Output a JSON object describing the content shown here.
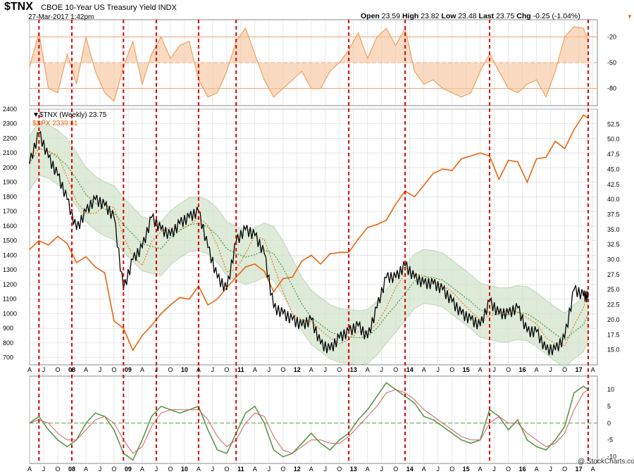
{
  "header": {
    "symbol": "$TNX",
    "name": "CBOE 10-Year US Treasury Yield",
    "exchange": "INDX",
    "date": "27-Mar-2017 1:42pm",
    "open_label": "Open",
    "open": "23.59",
    "high_label": "High",
    "high": "23.82",
    "low_label": "Low",
    "low": "23.48",
    "last_label": "Last",
    "last": "23.75",
    "chg_label": "Chg",
    "chg": "-0.25 (-1.04%)",
    "brand": "@ StockCharts.com"
  },
  "legend": {
    "tnx": "▼$TNX (Weekly) 23.75",
    "spx": "$SPX 2339.61"
  },
  "colors": {
    "tnx": "#000000",
    "spx": "#e8650f",
    "band_fill": "#cfe3c8",
    "band_edge": "#9dbb92",
    "ma_green": "#2e8b2e",
    "ma_orange": "#e8650f",
    "osc_fill": "#f7c39a",
    "osc_line": "#f0a060",
    "macd": "#5a9a4a",
    "signal": "#d06060",
    "vline": "#dd0000",
    "grid": "#d9d9d9"
  },
  "chart_data": [
    {
      "type": "line",
      "panel": "top-oscillator",
      "yticks": [
        -20,
        -50,
        -80
      ],
      "ylim": [
        -100,
        0
      ],
      "reference_lines": [
        -20,
        -50,
        -80
      ],
      "x": [
        "2007-04",
        "2007-06",
        "2007-08",
        "2007-10",
        "2007-12",
        "2008-02",
        "2008-04",
        "2008-06",
        "2008-08",
        "2008-10",
        "2008-12",
        "2009-02",
        "2009-04",
        "2009-06",
        "2009-08",
        "2009-10",
        "2009-12",
        "2010-02",
        "2010-04",
        "2010-06",
        "2010-08",
        "2010-10",
        "2010-12",
        "2011-02",
        "2011-04",
        "2011-06",
        "2011-08",
        "2011-10",
        "2011-12",
        "2012-02",
        "2012-04",
        "2012-06",
        "2012-08",
        "2012-10",
        "2012-12",
        "2013-02",
        "2013-04",
        "2013-06",
        "2013-08",
        "2013-10",
        "2013-12",
        "2014-02",
        "2014-04",
        "2014-06",
        "2014-08",
        "2014-10",
        "2014-12",
        "2015-02",
        "2015-04",
        "2015-06",
        "2015-08",
        "2015-10",
        "2015-12",
        "2016-02",
        "2016-04",
        "2016-06",
        "2016-08",
        "2016-10",
        "2016-12",
        "2017-02",
        "2017-03"
      ],
      "values": [
        -55,
        -15,
        -80,
        -85,
        -40,
        -75,
        -20,
        -60,
        -85,
        -95,
        -55,
        -25,
        -75,
        -40,
        -20,
        -45,
        -30,
        -25,
        -70,
        -90,
        -85,
        -60,
        -25,
        -10,
        -40,
        -70,
        -90,
        -80,
        -70,
        -60,
        -80,
        -80,
        -60,
        -50,
        -35,
        -15,
        -45,
        -20,
        -10,
        -30,
        -10,
        -60,
        -75,
        -70,
        -80,
        -85,
        -90,
        -85,
        -60,
        -40,
        -60,
        -80,
        -85,
        -75,
        -70,
        -90,
        -60,
        -20,
        -8,
        -10,
        -25
      ]
    },
    {
      "type": "line",
      "panel": "price",
      "series": [
        {
          "name": "$TNX (Weekly)",
          "axis": "right",
          "x": [
            "2007-04",
            "2007-06",
            "2007-08",
            "2007-10",
            "2007-12",
            "2008-02",
            "2008-04",
            "2008-06",
            "2008-08",
            "2008-10",
            "2008-12",
            "2009-02",
            "2009-04",
            "2009-06",
            "2009-08",
            "2009-10",
            "2009-12",
            "2010-02",
            "2010-04",
            "2010-06",
            "2010-08",
            "2010-10",
            "2010-12",
            "2011-02",
            "2011-04",
            "2011-06",
            "2011-08",
            "2011-10",
            "2011-12",
            "2012-02",
            "2012-04",
            "2012-06",
            "2012-08",
            "2012-10",
            "2012-12",
            "2013-02",
            "2013-04",
            "2013-06",
            "2013-08",
            "2013-10",
            "2013-12",
            "2014-02",
            "2014-04",
            "2014-06",
            "2014-08",
            "2014-10",
            "2014-12",
            "2015-02",
            "2015-04",
            "2015-06",
            "2015-08",
            "2015-10",
            "2015-12",
            "2016-02",
            "2016-04",
            "2016-06",
            "2016-08",
            "2016-10",
            "2016-12",
            "2017-02",
            "2017-03"
          ],
          "values": [
            46,
            51,
            47,
            44,
            40,
            35,
            38,
            40,
            39,
            37,
            25,
            30,
            32,
            37,
            35,
            34,
            36,
            37,
            38,
            32,
            27,
            25,
            33,
            35,
            34,
            31,
            22,
            21,
            20,
            19,
            20,
            16,
            15,
            17,
            18,
            19,
            17,
            22,
            27,
            27,
            29,
            27,
            26,
            26,
            25,
            23,
            21,
            20,
            19,
            23,
            21,
            21,
            22,
            18,
            18,
            15,
            15,
            17,
            25,
            24,
            23.75
          ]
        },
        {
          "name": "$SPX",
          "axis": "left",
          "x": [
            "2007-04",
            "2007-06",
            "2007-08",
            "2007-10",
            "2007-12",
            "2008-02",
            "2008-04",
            "2008-06",
            "2008-08",
            "2008-10",
            "2008-12",
            "2009-02",
            "2009-04",
            "2009-06",
            "2009-08",
            "2009-10",
            "2009-12",
            "2010-02",
            "2010-04",
            "2010-06",
            "2010-08",
            "2010-10",
            "2010-12",
            "2011-02",
            "2011-04",
            "2011-06",
            "2011-08",
            "2011-10",
            "2011-12",
            "2012-02",
            "2012-04",
            "2012-06",
            "2012-08",
            "2012-10",
            "2012-12",
            "2013-02",
            "2013-04",
            "2013-06",
            "2013-08",
            "2013-10",
            "2013-12",
            "2014-02",
            "2014-04",
            "2014-06",
            "2014-08",
            "2014-10",
            "2014-12",
            "2015-02",
            "2015-04",
            "2015-06",
            "2015-08",
            "2015-10",
            "2015-12",
            "2016-02",
            "2016-04",
            "2016-06",
            "2016-08",
            "2016-10",
            "2016-12",
            "2017-02",
            "2017-03"
          ],
          "values": [
            1440,
            1500,
            1470,
            1530,
            1480,
            1350,
            1390,
            1320,
            1280,
            950,
            900,
            750,
            850,
            920,
            1000,
            1060,
            1110,
            1100,
            1190,
            1060,
            1100,
            1180,
            1250,
            1320,
            1340,
            1290,
            1150,
            1240,
            1250,
            1360,
            1400,
            1340,
            1410,
            1420,
            1420,
            1510,
            1590,
            1610,
            1640,
            1750,
            1840,
            1800,
            1880,
            1960,
            1990,
            1980,
            2060,
            2080,
            2100,
            2080,
            1920,
            2050,
            2040,
            1900,
            2060,
            2070,
            2180,
            2130,
            2260,
            2360,
            2339.61
          ]
        }
      ],
      "left_yticks": [
        2400,
        2300,
        2200,
        2100,
        2000,
        1900,
        1800,
        1700,
        1600,
        1500,
        1400,
        1300,
        1200,
        1100,
        1000,
        900,
        800,
        700
      ],
      "right_yticks": [
        52.5,
        50.0,
        47.5,
        45.0,
        42.5,
        40.0,
        37.5,
        35.0,
        32.5,
        30.0,
        27.5,
        25.0,
        22.5,
        20.0,
        17.5,
        15.0
      ],
      "left_ylim": [
        650,
        2400
      ],
      "right_ylim": [
        12.5,
        55
      ]
    },
    {
      "type": "line",
      "panel": "bottom-macd",
      "yticks": [
        10,
        5,
        0,
        -5,
        -10
      ],
      "ylim": [
        -12,
        14
      ],
      "series": [
        {
          "name": "MACD",
          "x": [
            "2007-04",
            "2007-06",
            "2007-08",
            "2007-10",
            "2007-12",
            "2008-02",
            "2008-04",
            "2008-06",
            "2008-08",
            "2008-10",
            "2008-12",
            "2009-02",
            "2009-04",
            "2009-06",
            "2009-08",
            "2009-10",
            "2009-12",
            "2010-02",
            "2010-04",
            "2010-06",
            "2010-08",
            "2010-10",
            "2010-12",
            "2011-02",
            "2011-04",
            "2011-06",
            "2011-08",
            "2011-10",
            "2011-12",
            "2012-02",
            "2012-04",
            "2012-06",
            "2012-08",
            "2012-10",
            "2012-12",
            "2013-02",
            "2013-04",
            "2013-06",
            "2013-08",
            "2013-10",
            "2013-12",
            "2014-02",
            "2014-04",
            "2014-06",
            "2014-08",
            "2014-10",
            "2014-12",
            "2015-02",
            "2015-04",
            "2015-06",
            "2015-08",
            "2015-10",
            "2015-12",
            "2016-02",
            "2016-04",
            "2016-06",
            "2016-08",
            "2016-10",
            "2016-12",
            "2017-02",
            "2017-03"
          ],
          "values": [
            0,
            2,
            -2,
            -5,
            -7,
            -5,
            0,
            3,
            2,
            -2,
            -9,
            -11,
            -5,
            2,
            5,
            4,
            3,
            4,
            5,
            -2,
            -8,
            -9,
            -3,
            3,
            5,
            0,
            -8,
            -10,
            -9,
            -6,
            -3,
            -6,
            -8,
            -5,
            -3,
            1,
            4,
            8,
            12,
            10,
            8,
            6,
            2,
            1,
            -1,
            -3,
            -5,
            -6,
            -5,
            4,
            2,
            -2,
            1,
            -5,
            -7,
            -8,
            -5,
            -1,
            9,
            11,
            10
          ]
        },
        {
          "name": "Signal",
          "x": [
            "2007-04",
            "2007-06",
            "2007-08",
            "2007-10",
            "2007-12",
            "2008-02",
            "2008-04",
            "2008-06",
            "2008-08",
            "2008-10",
            "2008-12",
            "2009-02",
            "2009-04",
            "2009-06",
            "2009-08",
            "2009-10",
            "2009-12",
            "2010-02",
            "2010-04",
            "2010-06",
            "2010-08",
            "2010-10",
            "2010-12",
            "2011-02",
            "2011-04",
            "2011-06",
            "2011-08",
            "2011-10",
            "2011-12",
            "2012-02",
            "2012-04",
            "2012-06",
            "2012-08",
            "2012-10",
            "2012-12",
            "2013-02",
            "2013-04",
            "2013-06",
            "2013-08",
            "2013-10",
            "2013-12",
            "2014-02",
            "2014-04",
            "2014-06",
            "2014-08",
            "2014-10",
            "2014-12",
            "2015-02",
            "2015-04",
            "2015-06",
            "2015-08",
            "2015-10",
            "2015-12",
            "2016-02",
            "2016-04",
            "2016-06",
            "2016-08",
            "2016-10",
            "2016-12",
            "2017-02",
            "2017-03"
          ],
          "values": [
            0,
            1,
            0,
            -3,
            -5,
            -5,
            -2,
            1,
            2,
            0,
            -5,
            -9,
            -7,
            -1,
            3,
            4,
            4,
            4,
            4,
            1,
            -4,
            -7,
            -5,
            0,
            3,
            2,
            -4,
            -8,
            -9,
            -7,
            -5,
            -5,
            -6,
            -6,
            -4,
            -1,
            2,
            5,
            9,
            10,
            9,
            7,
            4,
            2,
            0,
            -2,
            -4,
            -5,
            -5,
            0,
            2,
            0,
            0,
            -3,
            -5,
            -7,
            -6,
            -3,
            4,
            9,
            10
          ]
        }
      ]
    }
  ],
  "x_axis": {
    "labels": [
      "A",
      "J",
      "O",
      "08",
      "A",
      "J",
      "O",
      "09",
      "A",
      "J",
      "O",
      "10",
      "A",
      "J",
      "O",
      "11",
      "A",
      "J",
      "O",
      "12",
      "A",
      "J",
      "O",
      "13",
      "A",
      "J",
      "O",
      "14",
      "A",
      "J",
      "O",
      "15",
      "A",
      "J",
      "O",
      "16",
      "A",
      "J",
      "O",
      "17",
      "A"
    ],
    "bold_labels": [
      "08",
      "09",
      "10",
      "11",
      "12",
      "13",
      "14",
      "15",
      "16",
      "17"
    ]
  },
  "markers": {
    "vertical_line_dates": [
      "2007-06-15",
      "2008-01-15",
      "2008-12-15",
      "2009-07-15",
      "2010-04-15",
      "2010-12-15",
      "2012-12-15",
      "2013-12-15",
      "2015-06-15",
      "2017-03-15"
    ]
  }
}
